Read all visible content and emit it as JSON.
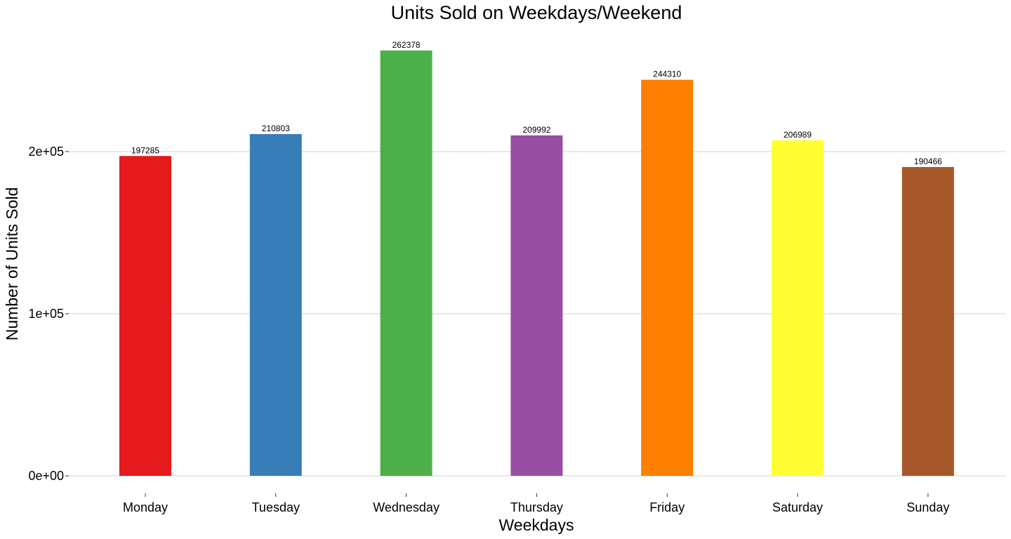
{
  "chart_data": {
    "type": "bar",
    "title": "Units Sold on Weekdays/Weekend",
    "xlabel": "Weekdays",
    "ylabel": "Number of Units Sold",
    "categories": [
      "Monday",
      "Tuesday",
      "Wednesday",
      "Thursday",
      "Friday",
      "Saturday",
      "Sunday"
    ],
    "values": [
      197285,
      210803,
      262378,
      209992,
      244310,
      206989,
      190466
    ],
    "colors": [
      "#e41a1c",
      "#377eb8",
      "#4daf4a",
      "#984ea3",
      "#ff7f00",
      "#ffff33",
      "#a65628"
    ],
    "y_ticks": [
      0,
      100000,
      200000
    ],
    "y_tick_labels": [
      "0e+00",
      "1e+05",
      "2e+05"
    ],
    "ylim": [
      -12000,
      275000
    ],
    "grid": true,
    "legend": "none"
  }
}
